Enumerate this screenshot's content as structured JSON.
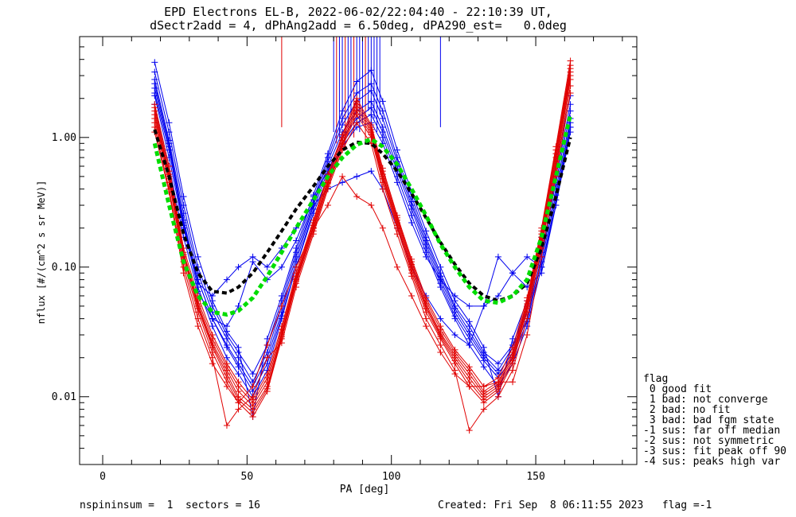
{
  "header": {
    "title_line1": "EPD Electrons EL-B, 2022-06-02/22:04:40 - 22:10:39 UT,",
    "title_line2": "dSectr2add = 4, dPhAng2add = 6.50deg, dPA290_est=   0.0deg"
  },
  "footer": {
    "left": "nspininsum =  1  sectors = 16",
    "right": "Created: Fri Sep  8 06:11:55 2023   flag =-1"
  },
  "legend": {
    "title": "flag",
    "items": [
      " 0 good fit",
      " 1 bad: not converge",
      " 2 bad: no fit",
      " 3 bad: bad fgm state",
      "-1 sus: far off median",
      "-2 sus: not symmetric",
      "-3 sus: fit peak off 90",
      "-4 sus: peaks high var"
    ]
  },
  "colors": {
    "red": "#e00000",
    "blue": "#0000ee",
    "fit_black": "#000000",
    "fit_green": "#00dd00",
    "axis": "#000000"
  },
  "chart_data": {
    "type": "line",
    "xlabel": "PA [deg]",
    "ylabel": "nflux [#/(cm^2 s sr MeV)]",
    "xlim": [
      -8,
      185
    ],
    "ylim": [
      0.003,
      6
    ],
    "yscale": "log",
    "xticks": [
      0,
      50,
      100,
      150
    ],
    "yticks": [
      0.01,
      0.1,
      1.0
    ],
    "ytick_labels": [
      "0.01",
      "0.10",
      "1.00"
    ],
    "grid": false,
    "pa_bins": [
      18,
      23,
      28,
      33,
      38,
      43,
      47,
      52,
      57,
      62,
      67,
      73,
      78,
      83,
      88,
      93,
      97,
      102,
      107,
      112,
      117,
      122,
      127,
      132,
      137,
      142,
      147,
      152,
      157,
      162
    ],
    "series": [
      {
        "color": "blue",
        "values": [
          2.6,
          0.9,
          0.23,
          0.08,
          0.04,
          0.025,
          0.018,
          0.012,
          0.02,
          0.045,
          0.11,
          0.3,
          0.6,
          1.1,
          1.6,
          1.9,
          1.2,
          0.6,
          0.3,
          0.15,
          0.08,
          0.045,
          0.03,
          0.02,
          0.015,
          0.022,
          0.04,
          0.12,
          0.4,
          1.4
        ]
      },
      {
        "color": "blue",
        "values": [
          3.2,
          1.1,
          0.3,
          0.1,
          0.05,
          0.03,
          0.022,
          0.015,
          0.025,
          0.055,
          0.13,
          0.33,
          0.7,
          1.4,
          2.2,
          2.6,
          1.6,
          0.7,
          0.35,
          0.17,
          0.09,
          0.05,
          0.035,
          0.022,
          0.018,
          0.025,
          0.05,
          0.15,
          0.5,
          1.8
        ]
      },
      {
        "color": "blue",
        "values": [
          2.1,
          0.7,
          0.2,
          0.07,
          0.035,
          0.02,
          0.015,
          0.01,
          0.016,
          0.04,
          0.1,
          0.26,
          0.5,
          0.9,
          1.3,
          1.5,
          1.0,
          0.5,
          0.25,
          0.13,
          0.07,
          0.04,
          0.025,
          0.017,
          0.012,
          0.018,
          0.035,
          0.1,
          0.33,
          1.2
        ]
      },
      {
        "color": "blue",
        "values": [
          2.8,
          0.95,
          0.26,
          0.09,
          0.045,
          0.028,
          0.02,
          0.013,
          0.022,
          0.05,
          0.12,
          0.31,
          0.65,
          1.25,
          1.9,
          2.3,
          1.4,
          0.65,
          0.32,
          0.16,
          0.085,
          0.048,
          0.032,
          0.021,
          0.016,
          0.024,
          0.045,
          0.13,
          0.45,
          1.6
        ]
      },
      {
        "color": "blue",
        "values": [
          1.8,
          0.6,
          0.17,
          0.065,
          0.04,
          0.035,
          0.05,
          0.11,
          0.08,
          0.1,
          0.16,
          0.35,
          0.55,
          0.85,
          1.2,
          1.3,
          0.9,
          0.45,
          0.22,
          0.12,
          0.08,
          0.06,
          0.05,
          0.05,
          0.06,
          0.09,
          0.12,
          0.1,
          0.3,
          1.1
        ]
      },
      {
        "color": "blue",
        "values": [
          3.8,
          1.3,
          0.35,
          0.12,
          0.055,
          0.032,
          0.024,
          0.007,
          0.028,
          0.06,
          0.14,
          0.36,
          0.75,
          1.6,
          2.7,
          3.3,
          1.9,
          0.8,
          0.38,
          0.19,
          0.1,
          0.055,
          0.038,
          0.024,
          0.01,
          0.028,
          0.055,
          0.17,
          0.6,
          2.1
        ]
      },
      {
        "color": "blue",
        "values": [
          2.4,
          0.85,
          0.22,
          0.08,
          0.04,
          0.024,
          0.017,
          0.011,
          0.018,
          0.042,
          0.1,
          0.28,
          0.55,
          1.0,
          1.4,
          1.7,
          1.1,
          0.55,
          0.28,
          0.14,
          0.075,
          0.042,
          0.028,
          0.019,
          0.014,
          0.02,
          0.038,
          0.11,
          0.36,
          1.3
        ]
      },
      {
        "color": "blue",
        "values": [
          2.2,
          0.8,
          0.21,
          0.075,
          0.06,
          0.08,
          0.1,
          0.12,
          0.1,
          0.14,
          0.2,
          0.3,
          0.4,
          0.45,
          0.5,
          0.55,
          0.4,
          0.2,
          0.1,
          0.06,
          0.04,
          0.03,
          0.025,
          0.05,
          0.12,
          0.09,
          0.07,
          0.09,
          0.3,
          1.2
        ]
      },
      {
        "color": "red",
        "values": [
          1.5,
          0.5,
          0.12,
          0.05,
          0.025,
          0.015,
          0.01,
          0.008,
          0.012,
          0.03,
          0.08,
          0.2,
          0.45,
          0.9,
          1.7,
          1.1,
          0.5,
          0.22,
          0.1,
          0.05,
          0.03,
          0.02,
          0.014,
          0.01,
          0.012,
          0.02,
          0.05,
          0.17,
          0.7,
          3.2
        ]
      },
      {
        "color": "red",
        "values": [
          1.3,
          0.45,
          0.11,
          0.045,
          0.022,
          0.013,
          0.009,
          0.007,
          0.011,
          0.028,
          0.075,
          0.19,
          0.42,
          0.85,
          1.5,
          1.0,
          0.45,
          0.2,
          0.09,
          0.045,
          0.028,
          0.018,
          0.012,
          0.009,
          0.011,
          0.018,
          0.045,
          0.15,
          0.6,
          2.8
        ]
      },
      {
        "color": "red",
        "values": [
          1.7,
          0.55,
          0.13,
          0.055,
          0.028,
          0.017,
          0.012,
          0.009,
          0.014,
          0.033,
          0.085,
          0.22,
          0.5,
          1.0,
          1.9,
          1.2,
          0.55,
          0.24,
          0.11,
          0.055,
          0.033,
          0.022,
          0.016,
          0.011,
          0.013,
          0.022,
          0.055,
          0.19,
          0.8,
          3.6
        ]
      },
      {
        "color": "red",
        "values": [
          1.4,
          0.48,
          0.12,
          0.048,
          0.024,
          0.014,
          0.0095,
          0.0075,
          0.0115,
          0.029,
          0.078,
          0.2,
          0.44,
          0.88,
          1.6,
          1.05,
          0.48,
          0.21,
          0.095,
          0.048,
          0.029,
          0.019,
          0.013,
          0.0095,
          0.0115,
          0.019,
          0.048,
          0.16,
          0.65,
          3.0
        ]
      },
      {
        "color": "red",
        "values": [
          1.6,
          0.52,
          0.125,
          0.052,
          0.026,
          0.016,
          0.011,
          0.0085,
          0.013,
          0.031,
          0.082,
          0.21,
          0.47,
          0.95,
          1.8,
          1.15,
          0.52,
          0.23,
          0.105,
          0.052,
          0.031,
          0.021,
          0.015,
          0.0105,
          0.0125,
          0.021,
          0.052,
          0.18,
          0.75,
          3.4
        ]
      },
      {
        "color": "red",
        "values": [
          1.2,
          0.4,
          0.1,
          0.04,
          0.02,
          0.006,
          0.008,
          0.01,
          0.02,
          0.026,
          0.07,
          0.18,
          0.4,
          0.8,
          1.3,
          0.9,
          0.4,
          0.18,
          0.085,
          0.04,
          0.025,
          0.016,
          0.0055,
          0.008,
          0.01,
          0.016,
          0.04,
          0.14,
          0.55,
          2.5
        ]
      },
      {
        "color": "red",
        "values": [
          1.8,
          0.6,
          0.14,
          0.06,
          0.03,
          0.018,
          0.013,
          0.0095,
          0.015,
          0.035,
          0.09,
          0.23,
          0.52,
          1.05,
          2.0,
          1.25,
          0.58,
          0.25,
          0.115,
          0.058,
          0.035,
          0.023,
          0.017,
          0.012,
          0.014,
          0.024,
          0.058,
          0.2,
          0.85,
          3.9
        ]
      },
      {
        "color": "red",
        "values": [
          1.1,
          0.38,
          0.09,
          0.035,
          0.018,
          0.012,
          0.009,
          0.012,
          0.025,
          0.05,
          0.1,
          0.2,
          0.3,
          0.5,
          0.35,
          0.3,
          0.2,
          0.1,
          0.06,
          0.035,
          0.022,
          0.015,
          0.012,
          0.012,
          0.013,
          0.013,
          0.03,
          0.12,
          0.5,
          2.2
        ]
      }
    ],
    "fit_black": {
      "color": "fit_black",
      "x": [
        18,
        23,
        28,
        33,
        38,
        43,
        47,
        52,
        57,
        62,
        67,
        73,
        78,
        83,
        88,
        93,
        97,
        102,
        107,
        112,
        117,
        122,
        127,
        132,
        137,
        142,
        147,
        152,
        157,
        162
      ],
      "values": [
        1.15,
        0.5,
        0.18,
        0.09,
        0.065,
        0.063,
        0.07,
        0.09,
        0.13,
        0.19,
        0.28,
        0.42,
        0.6,
        0.8,
        0.92,
        0.9,
        0.75,
        0.55,
        0.37,
        0.24,
        0.155,
        0.105,
        0.075,
        0.06,
        0.055,
        0.06,
        0.075,
        0.14,
        0.35,
        1.0
      ]
    },
    "fit_green": {
      "color": "fit_green",
      "x": [
        18,
        23,
        28,
        33,
        38,
        43,
        47,
        52,
        57,
        62,
        67,
        73,
        78,
        83,
        88,
        93,
        97,
        102,
        107,
        112,
        117,
        122,
        127,
        132,
        137,
        142,
        147,
        152,
        157,
        162
      ],
      "values": [
        0.9,
        0.3,
        0.11,
        0.06,
        0.045,
        0.043,
        0.046,
        0.058,
        0.085,
        0.13,
        0.2,
        0.33,
        0.5,
        0.7,
        0.88,
        0.97,
        0.85,
        0.62,
        0.4,
        0.25,
        0.15,
        0.1,
        0.07,
        0.055,
        0.053,
        0.06,
        0.08,
        0.17,
        0.5,
        1.5
      ]
    },
    "spikes": [
      {
        "x": 62,
        "y0": 1.2,
        "y1": 6,
        "color": "red"
      },
      {
        "x": 80,
        "y0": 1.1,
        "y1": 6,
        "color": "blue"
      },
      {
        "x": 81,
        "y0": 0.9,
        "y1": 6,
        "color": "red"
      },
      {
        "x": 82,
        "y0": 1.0,
        "y1": 6,
        "color": "blue"
      },
      {
        "x": 83,
        "y0": 1.3,
        "y1": 6,
        "color": "blue"
      },
      {
        "x": 84,
        "y0": 0.8,
        "y1": 6,
        "color": "red"
      },
      {
        "x": 85,
        "y0": 1.2,
        "y1": 6,
        "color": "blue"
      },
      {
        "x": 86,
        "y0": 1.5,
        "y1": 6,
        "color": "blue"
      },
      {
        "x": 87,
        "y0": 1.0,
        "y1": 6,
        "color": "red"
      },
      {
        "x": 88,
        "y0": 1.4,
        "y1": 6,
        "color": "blue"
      },
      {
        "x": 89,
        "y0": 1.1,
        "y1": 6,
        "color": "blue"
      },
      {
        "x": 90,
        "y0": 1.3,
        "y1": 6,
        "color": "blue"
      },
      {
        "x": 91,
        "y0": 0.9,
        "y1": 6,
        "color": "red"
      },
      {
        "x": 92,
        "y0": 1.6,
        "y1": 6,
        "color": "blue"
      },
      {
        "x": 93,
        "y0": 1.2,
        "y1": 6,
        "color": "blue"
      },
      {
        "x": 94,
        "y0": 1.4,
        "y1": 6,
        "color": "blue"
      },
      {
        "x": 95,
        "y0": 1.1,
        "y1": 6,
        "color": "blue"
      },
      {
        "x": 96,
        "y0": 1.5,
        "y1": 6,
        "color": "blue"
      },
      {
        "x": 117,
        "y0": 1.2,
        "y1": 6,
        "color": "blue"
      }
    ]
  }
}
